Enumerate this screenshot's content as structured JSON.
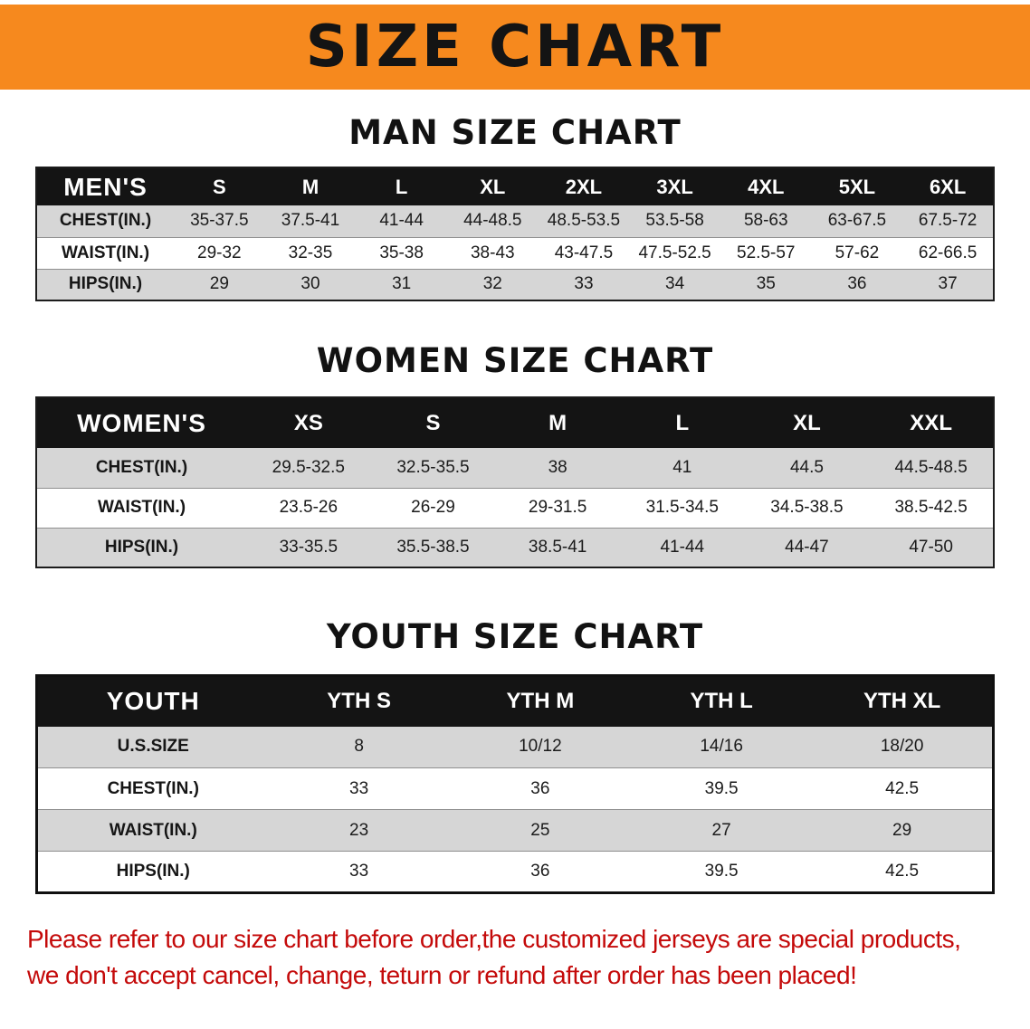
{
  "banner": {
    "title": "SIZE CHART"
  },
  "colors": {
    "banner_bg": "#F6891E",
    "table_header_bg": "#141414",
    "row_alt": "#D6D6D6",
    "notice_red": "#C40A0A"
  },
  "sections": [
    {
      "id": "men",
      "heading": "MAN SIZE CHART",
      "corner": "MEN'S",
      "columns": [
        "S",
        "M",
        "L",
        "XL",
        "2XL",
        "3XL",
        "4XL",
        "5XL",
        "6XL"
      ],
      "rows": [
        {
          "label": "CHEST(IN.)",
          "values": [
            "35-37.5",
            "37.5-41",
            "41-44",
            "44-48.5",
            "48.5-53.5",
            "53.5-58",
            "58-63",
            "63-67.5",
            "67.5-72"
          ]
        },
        {
          "label": "WAIST(IN.)",
          "values": [
            "29-32",
            "32-35",
            "35-38",
            "38-43",
            "43-47.5",
            "47.5-52.5",
            "52.5-57",
            "57-62",
            "62-66.5"
          ]
        },
        {
          "label": "HIPS(IN.)",
          "values": [
            "29",
            "30",
            "31",
            "32",
            "33",
            "34",
            "35",
            "36",
            "37"
          ]
        }
      ]
    },
    {
      "id": "women",
      "heading": "WOMEN SIZE CHART",
      "corner": "WOMEN'S",
      "columns": [
        "XS",
        "S",
        "M",
        "L",
        "XL",
        "XXL"
      ],
      "rows": [
        {
          "label": "CHEST(IN.)",
          "values": [
            "29.5-32.5",
            "32.5-35.5",
            "38",
            "41",
            "44.5",
            "44.5-48.5"
          ]
        },
        {
          "label": "WAIST(IN.)",
          "values": [
            "23.5-26",
            "26-29",
            "29-31.5",
            "31.5-34.5",
            "34.5-38.5",
            "38.5-42.5"
          ]
        },
        {
          "label": "HIPS(IN.)",
          "values": [
            "33-35.5",
            "35.5-38.5",
            "38.5-41",
            "41-44",
            "44-47",
            "47-50"
          ]
        }
      ]
    },
    {
      "id": "youth",
      "heading": "YOUTH SIZE CHART",
      "corner": "YOUTH",
      "columns": [
        "YTH S",
        "YTH M",
        "YTH L",
        "YTH XL"
      ],
      "rows": [
        {
          "label": "U.S.SIZE",
          "values": [
            "8",
            "10/12",
            "14/16",
            "18/20"
          ]
        },
        {
          "label": "CHEST(IN.)",
          "values": [
            "33",
            "36",
            "39.5",
            "42.5"
          ]
        },
        {
          "label": "WAIST(IN.)",
          "values": [
            "23",
            "25",
            "27",
            "29"
          ]
        },
        {
          "label": "HIPS(IN.)",
          "values": [
            "33",
            "36",
            "39.5",
            "42.5"
          ]
        }
      ]
    }
  ],
  "footer": {
    "line1": "Please refer to our size chart before order,the customized jerseys are special products,",
    "line2": "we don't accept cancel, change, teturn or refund after order has been placed!"
  }
}
